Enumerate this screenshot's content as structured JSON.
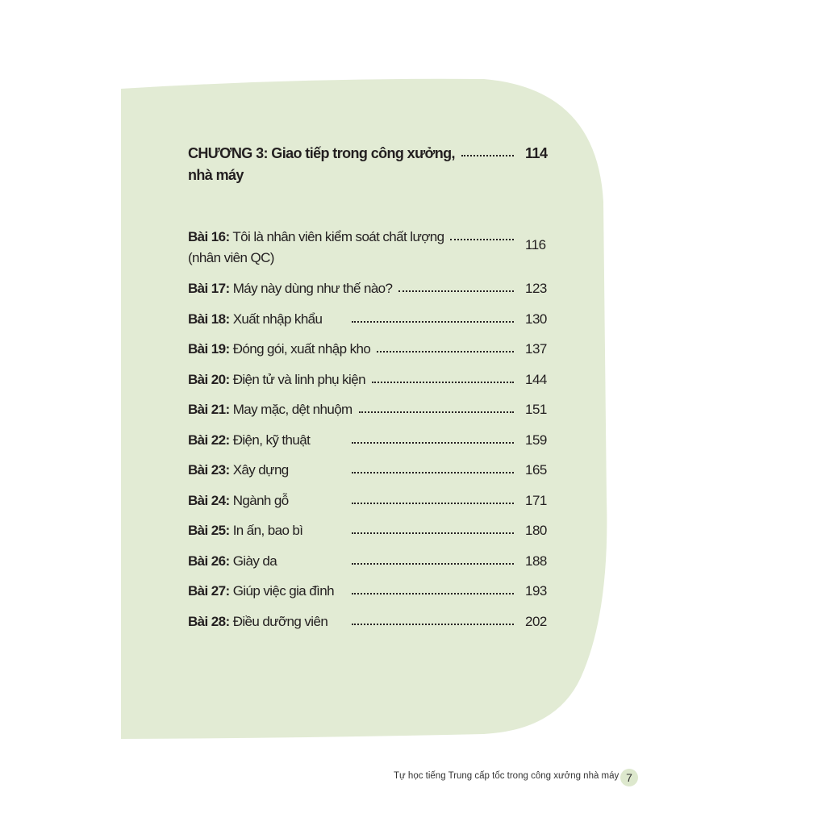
{
  "chapter": {
    "title_line1": "CHƯƠNG 3: Giao tiếp trong công xưởng,",
    "title_line2": "nhà máy",
    "page": "114"
  },
  "lessons": [
    {
      "label": "Bài 16:",
      "title": "Tôi là nhân viên kiểm soát chất lượng",
      "title2": "(nhân viên QC)",
      "page": "116"
    },
    {
      "label": "Bài 17:",
      "title": "Máy này dùng như thế nào?",
      "page": "123"
    },
    {
      "label": "Bài 18:",
      "title": "Xuất nhập khẩu",
      "page": "130"
    },
    {
      "label": "Bài 19:",
      "title": "Đóng gói, xuất nhập kho",
      "page": "137"
    },
    {
      "label": "Bài 20:",
      "title": "Điện tử và linh phụ kiện",
      "page": "144"
    },
    {
      "label": "Bài 21:",
      "title": "May mặc, dệt nhuộm",
      "page": "151"
    },
    {
      "label": "Bài 22:",
      "title": "Điện, kỹ thuật",
      "page": "159"
    },
    {
      "label": "Bài 23:",
      "title": "Xây dựng",
      "page": "165"
    },
    {
      "label": "Bài 24:",
      "title": "Ngành gỗ",
      "page": "171"
    },
    {
      "label": "Bài 25:",
      "title": "In ấn, bao bì",
      "page": "180"
    },
    {
      "label": "Bài 26:",
      "title": "Giày da",
      "page": "188"
    },
    {
      "label": "Bài 27:",
      "title": "Giúp việc gia đình",
      "page": "193"
    },
    {
      "label": "Bài 28:",
      "title": "Điều dưỡng viên",
      "page": "202"
    }
  ],
  "footer": {
    "book_title": "Tự học tiếng Trung cấp tốc trong công xưởng nhà máy",
    "page_number": "7"
  },
  "colors": {
    "panel": "#e2ebd4",
    "text": "#231f20"
  }
}
